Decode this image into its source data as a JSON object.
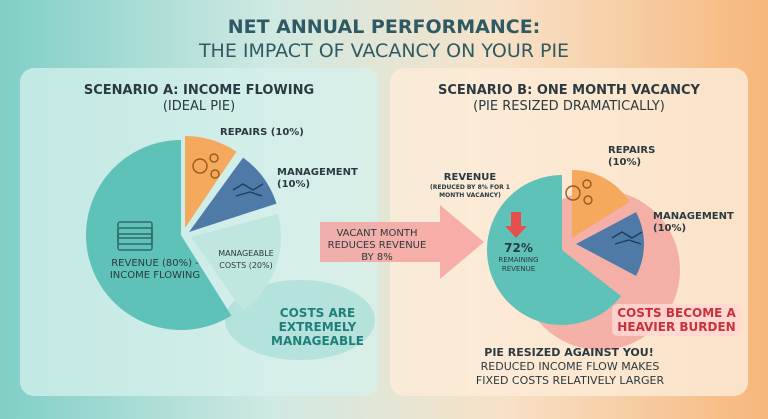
{
  "title": {
    "line1": "NET ANNUAL PERFORMANCE:",
    "line2": "THE IMPACT OF VACANCY ON YOUR PIE"
  },
  "scenario_a": {
    "heading": "SCENARIO A: INCOME FLOWING",
    "subheading": "(IDEAL PIE)",
    "repairs": "REPAIRS (10%)",
    "management": "MANAGEMENT",
    "management_pct": "(10%)",
    "manageable_costs": "MANAGEABLE COSTS (20%)",
    "revenue": "REVENUE (80%) - INCOME FLOWING",
    "callout": "COSTS ARE EXTREMELY MANAGEABLE",
    "icons": [
      "money-stack-icon",
      "gears-icon",
      "handshake-icon"
    ]
  },
  "arrow": {
    "text": "VACANT MONTH REDUCES REVENUE BY 8%"
  },
  "scenario_b": {
    "heading": "SCENARIO B: ONE MONTH VACANCY",
    "subheading": "(PIE RESIZED DRAMATICALLY)",
    "revenue": "REVENUE",
    "revenue_note": "(REDUCED BY 8% FOR 1 MONTH VACANCY)",
    "repairs": "REPAIRS",
    "repairs_pct": "(10%)",
    "management": "MANAGEMENT",
    "management_pct": "(10%)",
    "remaining_pct": "72%",
    "remaining_label": "REMAINING REVENUE",
    "callout": "COSTS BECOME A HEAVIER BURDEN",
    "footer_bold": "PIE RESIZED AGAINST YOU!",
    "footer": "REDUCED INCOME FLOW MAKES FIXED COSTS RELATIVELY LARGER"
  },
  "colors": {
    "teal": "#5fc2b8",
    "light_teal": "#bfe6df",
    "orange": "#f5a95c",
    "blue": "#4f7aa8",
    "red": "#ef7f7f"
  }
}
